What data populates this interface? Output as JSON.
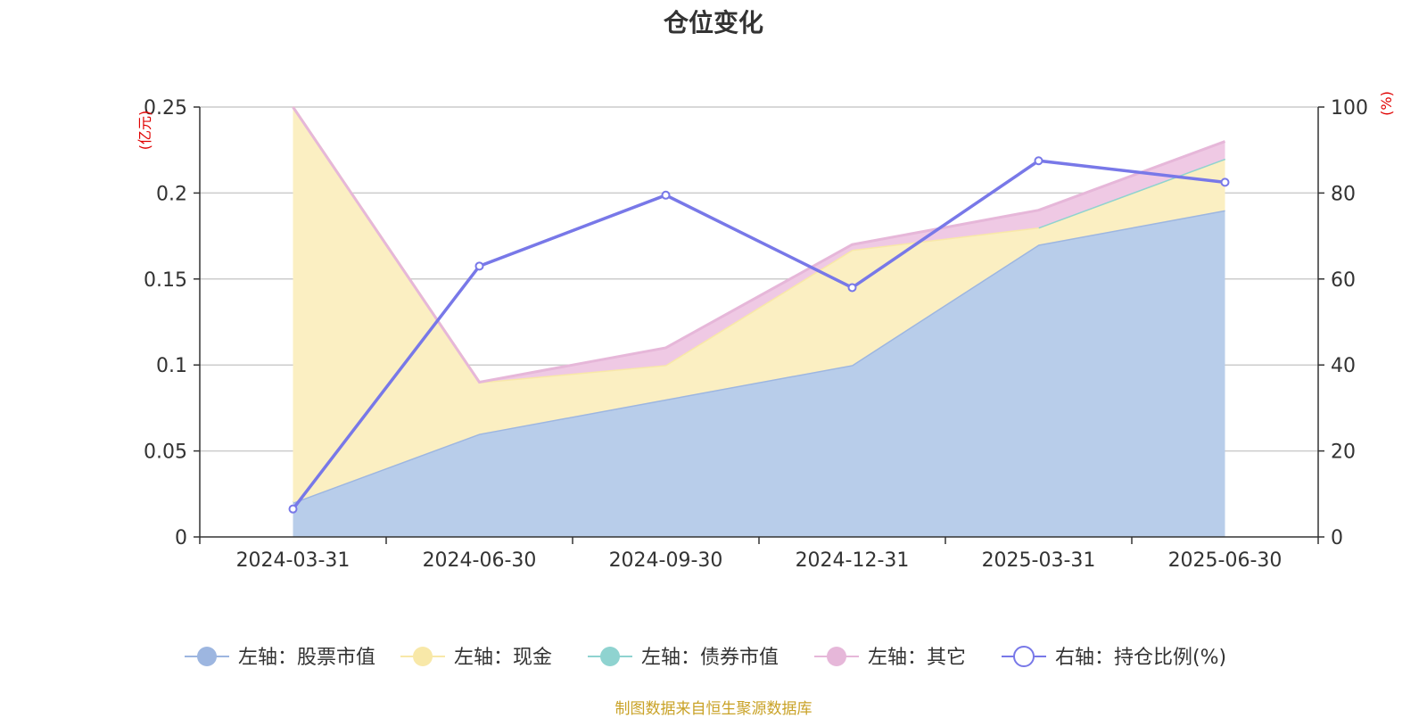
{
  "chart_data": {
    "type": "area",
    "title": "仓位变化",
    "left_axis_unit": "(亿元)",
    "right_axis_unit": "(%)",
    "x": [
      "2024-03-31",
      "2024-06-30",
      "2024-09-30",
      "2024-12-31",
      "2025-03-31",
      "2025-06-30"
    ],
    "left_ylim": [
      0,
      0.25
    ],
    "left_yticks": [
      "0",
      "0.05",
      "0.1",
      "0.15",
      "0.2",
      "0.25"
    ],
    "left_ytick_values": [
      0,
      0.05,
      0.1,
      0.15,
      0.2,
      0.25
    ],
    "right_ylim": [
      0,
      100
    ],
    "right_yticks": [
      "0",
      "20",
      "40",
      "60",
      "80",
      "100"
    ],
    "right_ytick_values": [
      0,
      20,
      40,
      60,
      80,
      100
    ],
    "grid": true,
    "legend_position": "bottom",
    "stacked_series": [
      {
        "name": "左轴：股票市值",
        "axis": "left",
        "values": [
          0.02,
          0.06,
          0.08,
          0.1,
          0.17,
          0.19
        ],
        "color": "#9db6e0",
        "fill": "#b8cdea"
      },
      {
        "name": "左轴：现金",
        "axis": "left",
        "values": [
          0.23,
          0.03,
          0.02,
          0.067,
          0.01,
          0.03
        ],
        "color": "#f8e8a8",
        "fill": "#fbefc2"
      },
      {
        "name": "左轴：债券市值",
        "axis": "left",
        "values": [
          null,
          null,
          null,
          null,
          0.0,
          0.0
        ],
        "color": "#8fd3d0",
        "fill": "#a7dcd9"
      },
      {
        "name": "左轴：其它",
        "axis": "left",
        "values": [
          0.0,
          0.0,
          0.01,
          0.003,
          0.01,
          0.01
        ],
        "color": "#e6b7d9",
        "fill": "#efc9e4"
      }
    ],
    "line_series": {
      "name": "右轴：持仓比例(%)",
      "axis": "right",
      "values": [
        6.5,
        63,
        79.5,
        58,
        87.5,
        82.5
      ],
      "color": "#7878e8"
    }
  },
  "source_note": "制图数据来自恒生聚源数据库"
}
